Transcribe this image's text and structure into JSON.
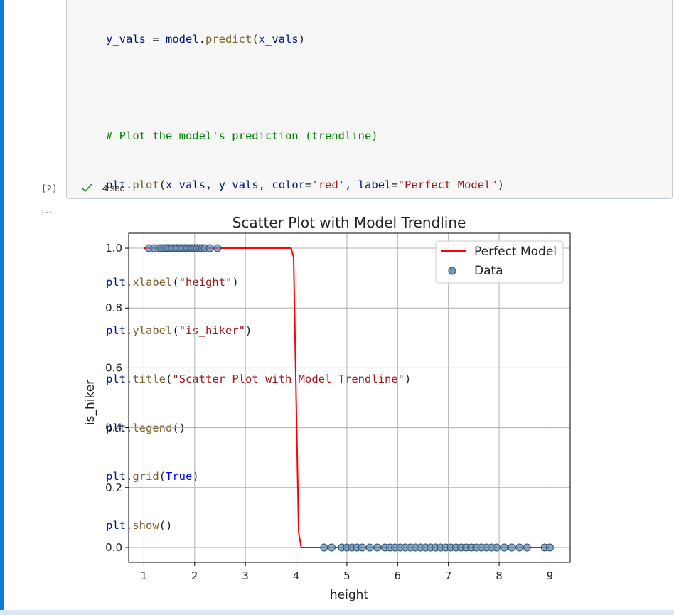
{
  "code_lines": [
    "y_vals = model.predict(x_vals)",
    "",
    "# Plot the model's prediction (trendline)",
    "plt.plot(x_vals, y_vals, color='red', label=\"Perfect Model\")",
    "",
    "plt.xlabel(\"height\")",
    "plt.ylabel(\"is_hiker\")",
    "plt.title(\"Scatter Plot with Model Trendline\")",
    "plt.legend()",
    "plt.grid(True)",
    "plt.show()"
  ],
  "cell": {
    "execution_count": "[2]",
    "status_icon": "check-icon",
    "exec_time": "4 sec",
    "output_ellipsis": "..."
  },
  "colors": {
    "accent_bar": "#0f7ad8",
    "trendline": "#ff0000",
    "points_fill": "#6f95bd",
    "points_stroke": "#2f4f6f"
  },
  "chart_data": {
    "type": "scatter",
    "title": "Scatter Plot with Model Trendline",
    "xlabel": "height",
    "ylabel": "is_hiker",
    "xlim": [
      0.7,
      9.4
    ],
    "ylim": [
      -0.05,
      1.05
    ],
    "xticks": [
      1,
      2,
      3,
      4,
      5,
      6,
      7,
      8,
      9
    ],
    "yticks": [
      0.0,
      0.2,
      0.4,
      0.6,
      0.8,
      1.0
    ],
    "ytick_labels": [
      "0.0",
      "0.2",
      "0.4",
      "0.6",
      "0.8",
      "1.0"
    ],
    "grid": true,
    "legend_position": "top-right",
    "series": [
      {
        "name": "Perfect Model",
        "kind": "line",
        "x": [
          1.0,
          3.5,
          3.9,
          3.95,
          4.0,
          4.05,
          4.1,
          4.5,
          9.0
        ],
        "y": [
          1.0,
          1.0,
          1.0,
          0.97,
          0.5,
          0.05,
          0.0,
          0.0,
          0.0
        ]
      },
      {
        "name": "Data",
        "kind": "scatter",
        "x": [
          1.1,
          1.2,
          1.3,
          1.35,
          1.4,
          1.45,
          1.5,
          1.55,
          1.6,
          1.65,
          1.7,
          1.75,
          1.8,
          1.85,
          1.9,
          1.95,
          2.0,
          2.05,
          2.1,
          2.15,
          2.2,
          2.3,
          2.45,
          4.55,
          4.7,
          4.9,
          5.0,
          5.1,
          5.2,
          5.3,
          5.45,
          5.6,
          5.75,
          5.85,
          5.95,
          6.05,
          6.15,
          6.25,
          6.35,
          6.45,
          6.55,
          6.65,
          6.75,
          6.85,
          6.95,
          7.05,
          7.15,
          7.25,
          7.35,
          7.45,
          7.55,
          7.65,
          7.75,
          7.85,
          7.95,
          8.1,
          8.25,
          8.4,
          8.55,
          8.9,
          9.0
        ],
        "y": [
          1,
          1,
          1,
          1,
          1,
          1,
          1,
          1,
          1,
          1,
          1,
          1,
          1,
          1,
          1,
          1,
          1,
          1,
          1,
          1,
          1,
          1,
          1,
          0,
          0,
          0,
          0,
          0,
          0,
          0,
          0,
          0,
          0,
          0,
          0,
          0,
          0,
          0,
          0,
          0,
          0,
          0,
          0,
          0,
          0,
          0,
          0,
          0,
          0,
          0,
          0,
          0,
          0,
          0,
          0,
          0,
          0,
          0,
          0,
          0,
          0
        ]
      }
    ]
  }
}
